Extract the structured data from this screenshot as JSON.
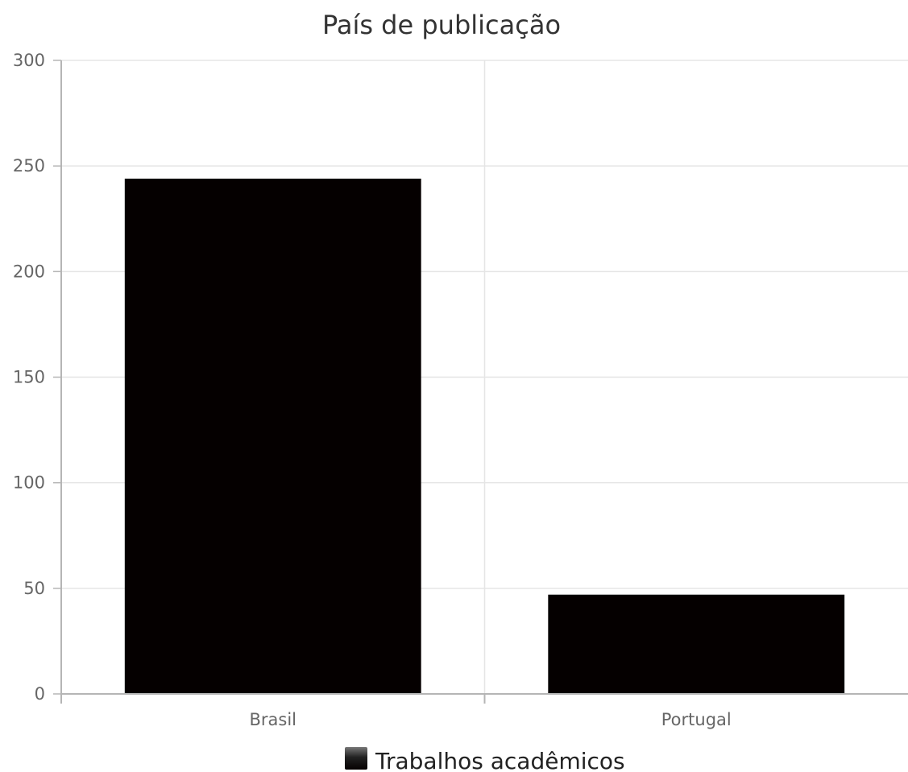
{
  "chart_data": {
    "type": "bar",
    "title": "País de publicação",
    "categories": [
      "Brasil",
      "Portugal"
    ],
    "series": [
      {
        "name": "Trabalhos acadêmicos",
        "values": [
          244,
          47
        ],
        "color": "#050000"
      }
    ],
    "ylim": [
      0,
      300
    ],
    "yticks": [
      0,
      50,
      100,
      150,
      200,
      250,
      300
    ],
    "grid": true,
    "legend": "bottom"
  }
}
